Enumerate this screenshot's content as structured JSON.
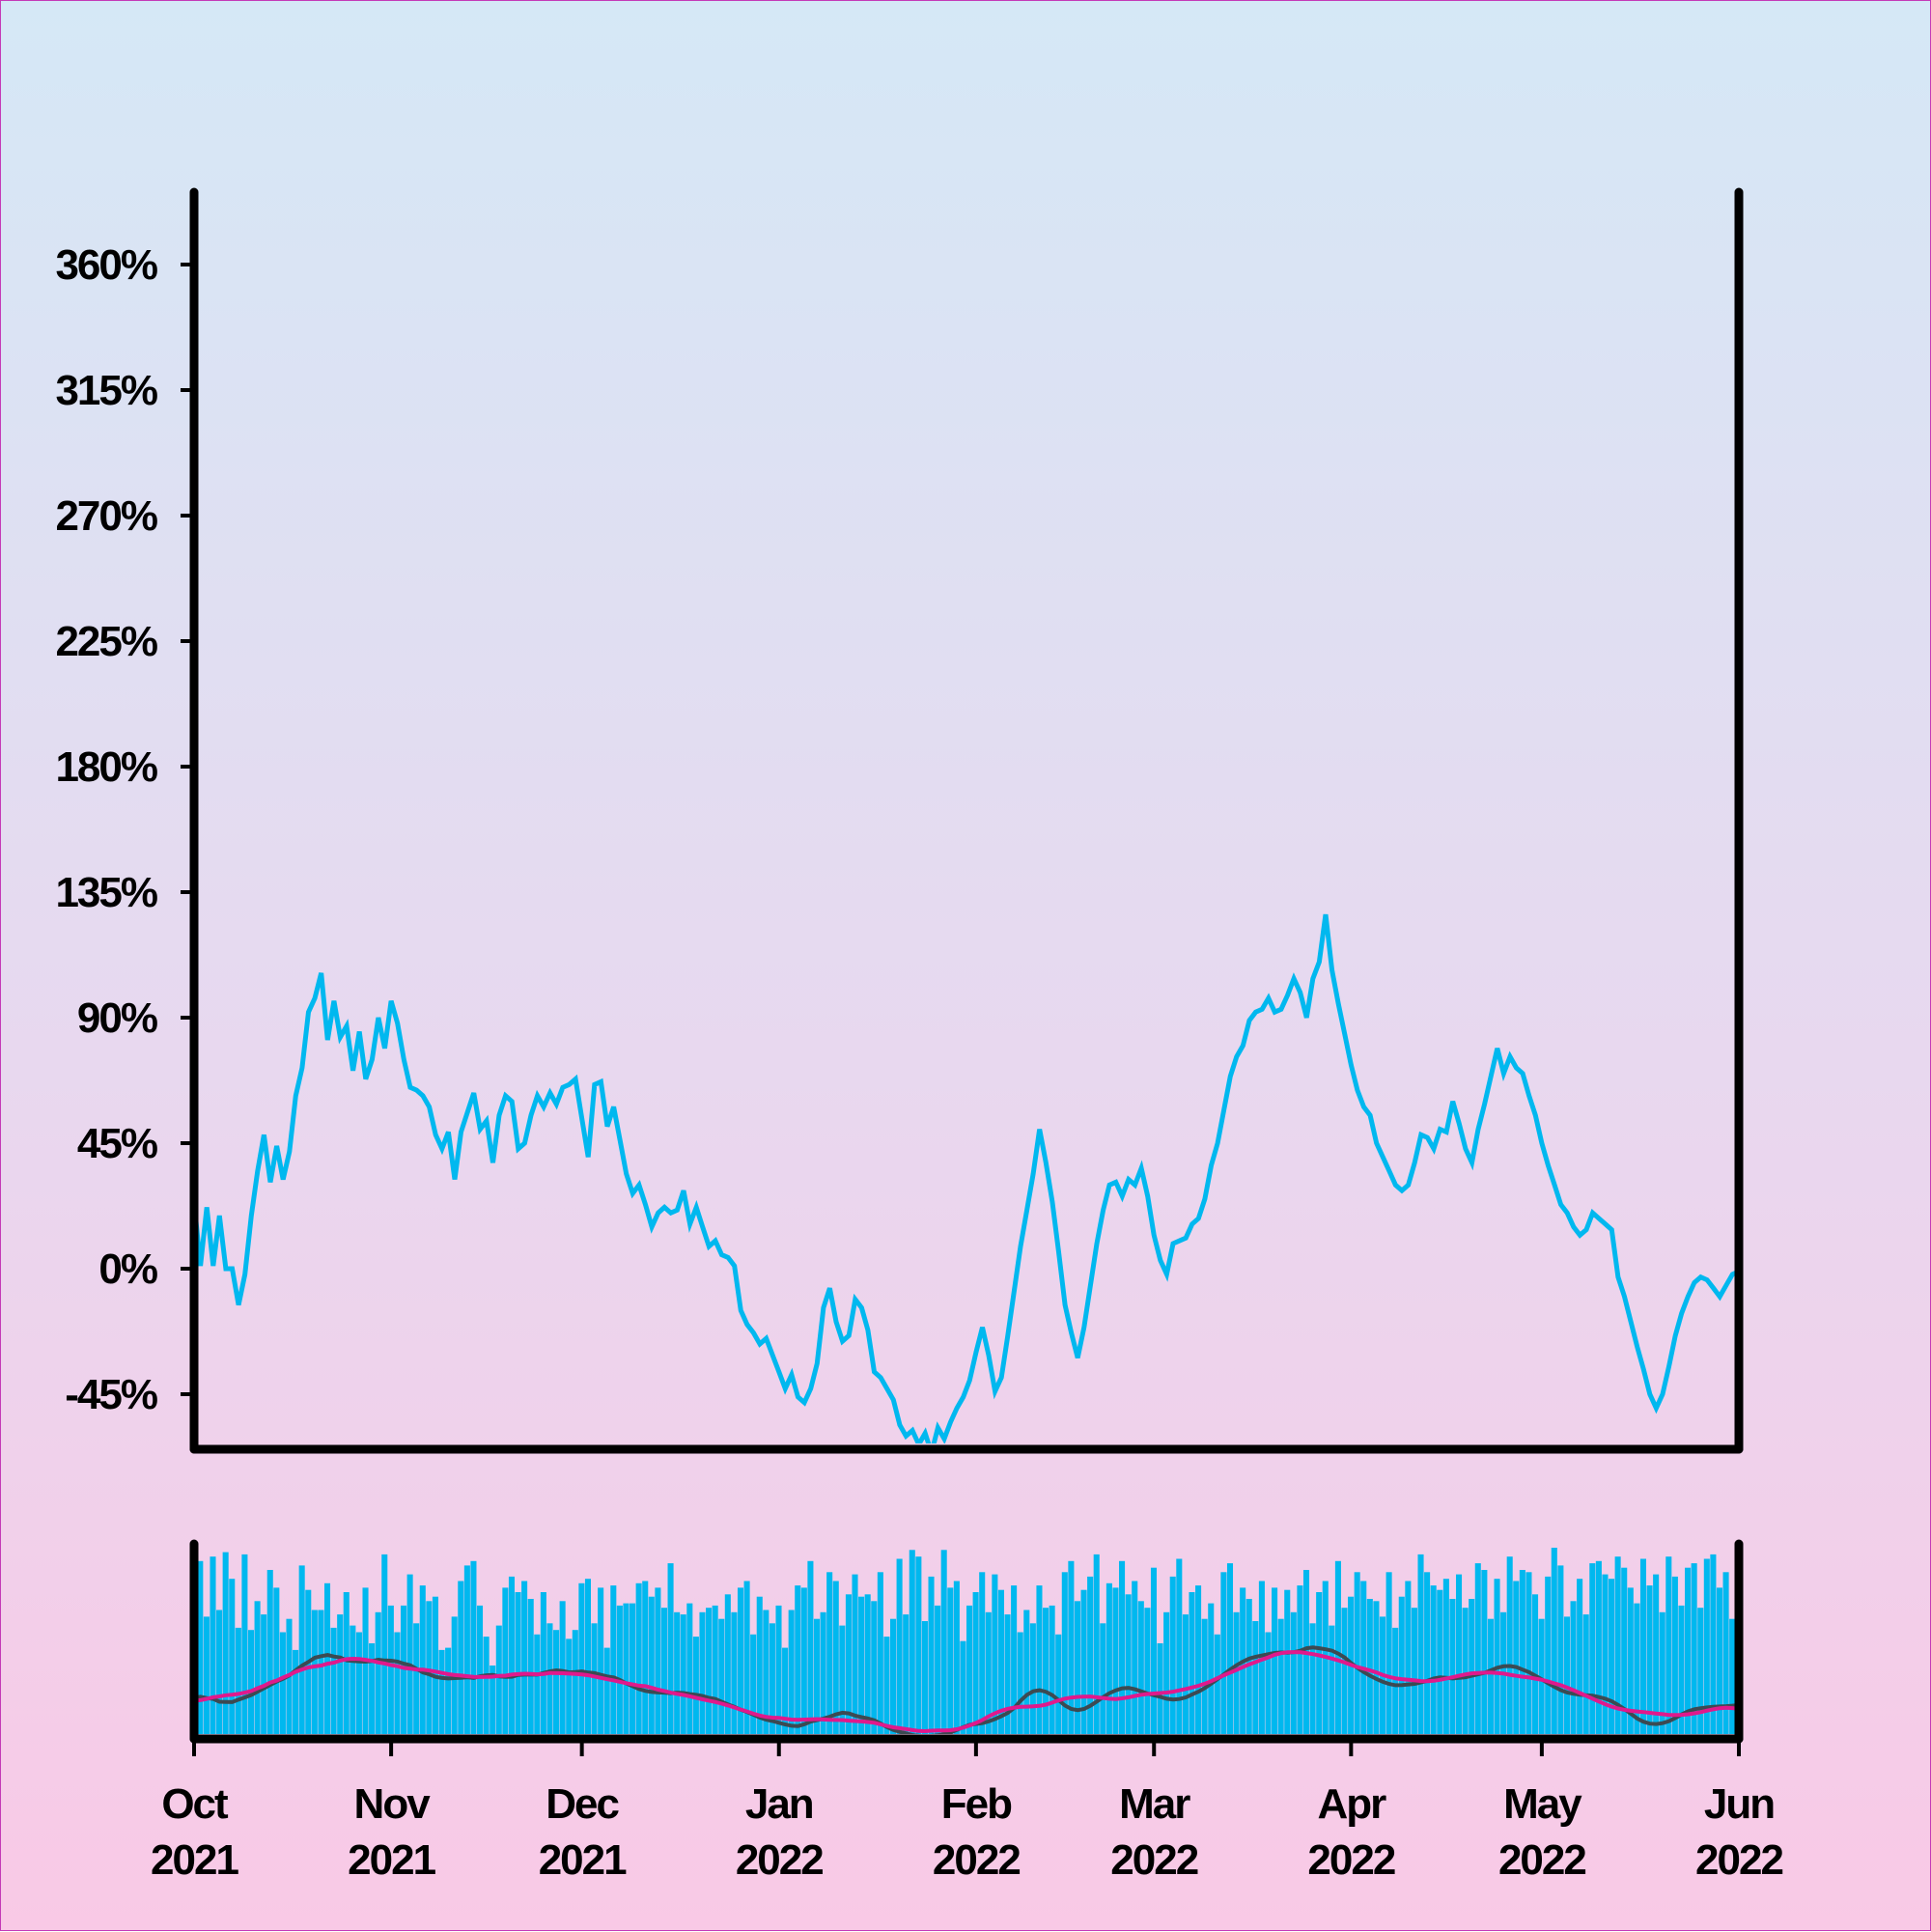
{
  "chart_data": {
    "type": "line",
    "main_panel": {
      "series": [
        {
          "color": "#00b8ef",
          "x_start": "2021-10-01",
          "x_step_days": 1,
          "values": [
            24,
            1,
            22,
            1,
            19,
            0,
            0,
            -13,
            -2,
            19,
            35,
            48,
            31,
            44,
            32,
            42,
            62,
            72,
            92,
            97,
            106,
            82,
            96,
            83,
            87,
            71,
            85,
            68,
            75,
            90,
            79,
            96,
            88,
            75,
            65,
            64,
            62,
            58,
            48,
            43,
            49,
            32,
            49,
            56,
            63,
            50,
            53,
            38,
            55,
            62,
            60,
            43,
            45,
            55,
            62,
            58,
            63,
            59,
            65,
            66,
            68,
            54,
            40,
            66,
            67,
            51,
            58,
            46,
            34,
            27,
            30,
            23,
            15,
            20,
            22,
            20,
            21,
            28,
            16,
            22,
            15,
            8,
            10,
            5,
            4,
            1,
            -15,
            -20,
            -23,
            -27,
            -25,
            -31,
            -37,
            -43,
            -38,
            -46,
            -48,
            -43,
            -34,
            -14,
            -7,
            -19,
            -26,
            -24,
            -11,
            -14,
            -22,
            -37,
            -39,
            -43,
            -47,
            -56,
            -60,
            -58,
            -63,
            -59,
            -66,
            -57,
            -61,
            -55,
            -50,
            -46,
            -40,
            -30,
            -21,
            -31,
            -44,
            -39,
            -24,
            -8,
            8,
            21,
            34,
            50,
            38,
            24,
            6,
            -13,
            -23,
            -32,
            -21,
            -6,
            9,
            21,
            30,
            31,
            26,
            32,
            30,
            36,
            26,
            12,
            3,
            -2,
            9,
            10,
            11,
            16,
            18,
            25,
            37,
            45,
            57,
            69,
            76,
            80,
            89,
            92,
            93,
            97,
            92,
            93,
            98,
            104,
            99,
            90,
            104,
            110,
            127,
            107,
            95,
            84,
            73,
            64,
            58,
            55,
            45,
            40,
            35,
            30,
            28,
            30,
            38,
            48,
            47,
            43,
            50,
            49,
            60,
            52,
            43,
            38,
            50,
            59,
            69,
            79,
            70,
            76,
            72,
            70,
            62,
            55,
            45,
            37,
            30,
            23,
            20,
            15,
            12,
            14,
            20,
            18,
            16,
            14,
            -3,
            -10,
            -19,
            -28,
            -36,
            -45,
            -50,
            -45,
            -35,
            -24,
            -16,
            -10,
            -5,
            -3,
            -4,
            -7,
            -10,
            -6,
            -2,
            -1,
            1,
            3,
            2,
            -5,
            -11,
            -21,
            -35,
            -40,
            -42,
            -46,
            -53,
            -55,
            -57,
            -60,
            -45,
            -44,
            -47,
            -55,
            -38,
            -23,
            -28,
            -33,
            -47,
            -40,
            -43,
            -35,
            -30,
            -27,
            -25,
            -15,
            -9,
            -2
          ]
        }
      ],
      "x_range": [
        "2021-10-01",
        "2022-06-01"
      ],
      "ylim": [
        -65,
        385
      ],
      "y_ticks": [
        "360%",
        "315%",
        "270%",
        "225%",
        "180%",
        "135%",
        "90%",
        "45%",
        "0%",
        "-45%"
      ],
      "y_tick_values": [
        360,
        315,
        270,
        225,
        180,
        135,
        90,
        45,
        0,
        -45
      ]
    },
    "sub_panel": {
      "bars_color": "#00b8ef",
      "bar_values": [
        64,
        80,
        55,
        82,
        58,
        84,
        72,
        50,
        83,
        49,
        62,
        56,
        76,
        68,
        48,
        54,
        40,
        78,
        67,
        58,
        58,
        70,
        50,
        56,
        66,
        51,
        48,
        68,
        43,
        57,
        83,
        60,
        48,
        60,
        74,
        52,
        69,
        62,
        64,
        40,
        41,
        55,
        71,
        78,
        80,
        60,
        46,
        33,
        51,
        68,
        73,
        66,
        71,
        63,
        47,
        66,
        52,
        49,
        62,
        45,
        49,
        70,
        72,
        52,
        68,
        41,
        69,
        60,
        61,
        61,
        70,
        71,
        64,
        68,
        59,
        79,
        57,
        56,
        61,
        46,
        57,
        59,
        60,
        54,
        65,
        57,
        68,
        71,
        47,
        64,
        58,
        52,
        60,
        41,
        58,
        69,
        68,
        80,
        54,
        57,
        75,
        71,
        51,
        65,
        74,
        64,
        65,
        62,
        75,
        46,
        54,
        81,
        56,
        85,
        82,
        53,
        73,
        60,
        85,
        68,
        71,
        44,
        60,
        66,
        75,
        57,
        74,
        67,
        56,
        69,
        48,
        58,
        52,
        69,
        59,
        60,
        47,
        75,
        80,
        62,
        67,
        73,
        83,
        52,
        70,
        68,
        80,
        65,
        71,
        62,
        59,
        77,
        43,
        57,
        73,
        81,
        56,
        66,
        69,
        54,
        61,
        47,
        75,
        79,
        57,
        68,
        63,
        53,
        71,
        48,
        68,
        54,
        67,
        57,
        69,
        76,
        52,
        66,
        71,
        51,
        80,
        59,
        64,
        75,
        71,
        63,
        62,
        55,
        75,
        50,
        64,
        71,
        59,
        83,
        75,
        69,
        67,
        72,
        63,
        74,
        59,
        63,
        79,
        76,
        54,
        72,
        57,
        82,
        71,
        76,
        75,
        65,
        54,
        73,
        86,
        78,
        55,
        62,
        72,
        56,
        79,
        80,
        74,
        72,
        82,
        77,
        68,
        61,
        81,
        69,
        74,
        57,
        82,
        73,
        60,
        77,
        79,
        59,
        81,
        83,
        68,
        75,
        54,
        80,
        69,
        76,
        81,
        73,
        67,
        63,
        59,
        78,
        85,
        72,
        82,
        79,
        60,
        73,
        62,
        72,
        78,
        86,
        70,
        62,
        86,
        77,
        61,
        81,
        74,
        83,
        68,
        77,
        78,
        71,
        56,
        83,
        60,
        85,
        74,
        79,
        58,
        84,
        69,
        84,
        62,
        86
      ],
      "lines": [
        {
          "color": "#3c4a52"
        },
        {
          "color": "#e0198c"
        }
      ]
    },
    "x_ticks": [
      {
        "month": "Oct",
        "year": "2021",
        "date": "2021-10-01"
      },
      {
        "month": "Nov",
        "year": "2021",
        "date": "2021-11-01"
      },
      {
        "month": "Dec",
        "year": "2021",
        "date": "2021-12-01"
      },
      {
        "month": "Jan",
        "year": "2022",
        "date": "2022-01-01"
      },
      {
        "month": "Feb",
        "year": "2022",
        "date": "2022-02-01"
      },
      {
        "month": "Mar",
        "year": "2022",
        "date": "2022-03-01"
      },
      {
        "month": "Apr",
        "year": "2022",
        "date": "2022-04-01"
      },
      {
        "month": "May",
        "year": "2022",
        "date": "2022-05-01"
      },
      {
        "month": "Jun",
        "year": "2022",
        "date": "2022-06-01"
      }
    ],
    "grid": false,
    "legend": "none"
  }
}
